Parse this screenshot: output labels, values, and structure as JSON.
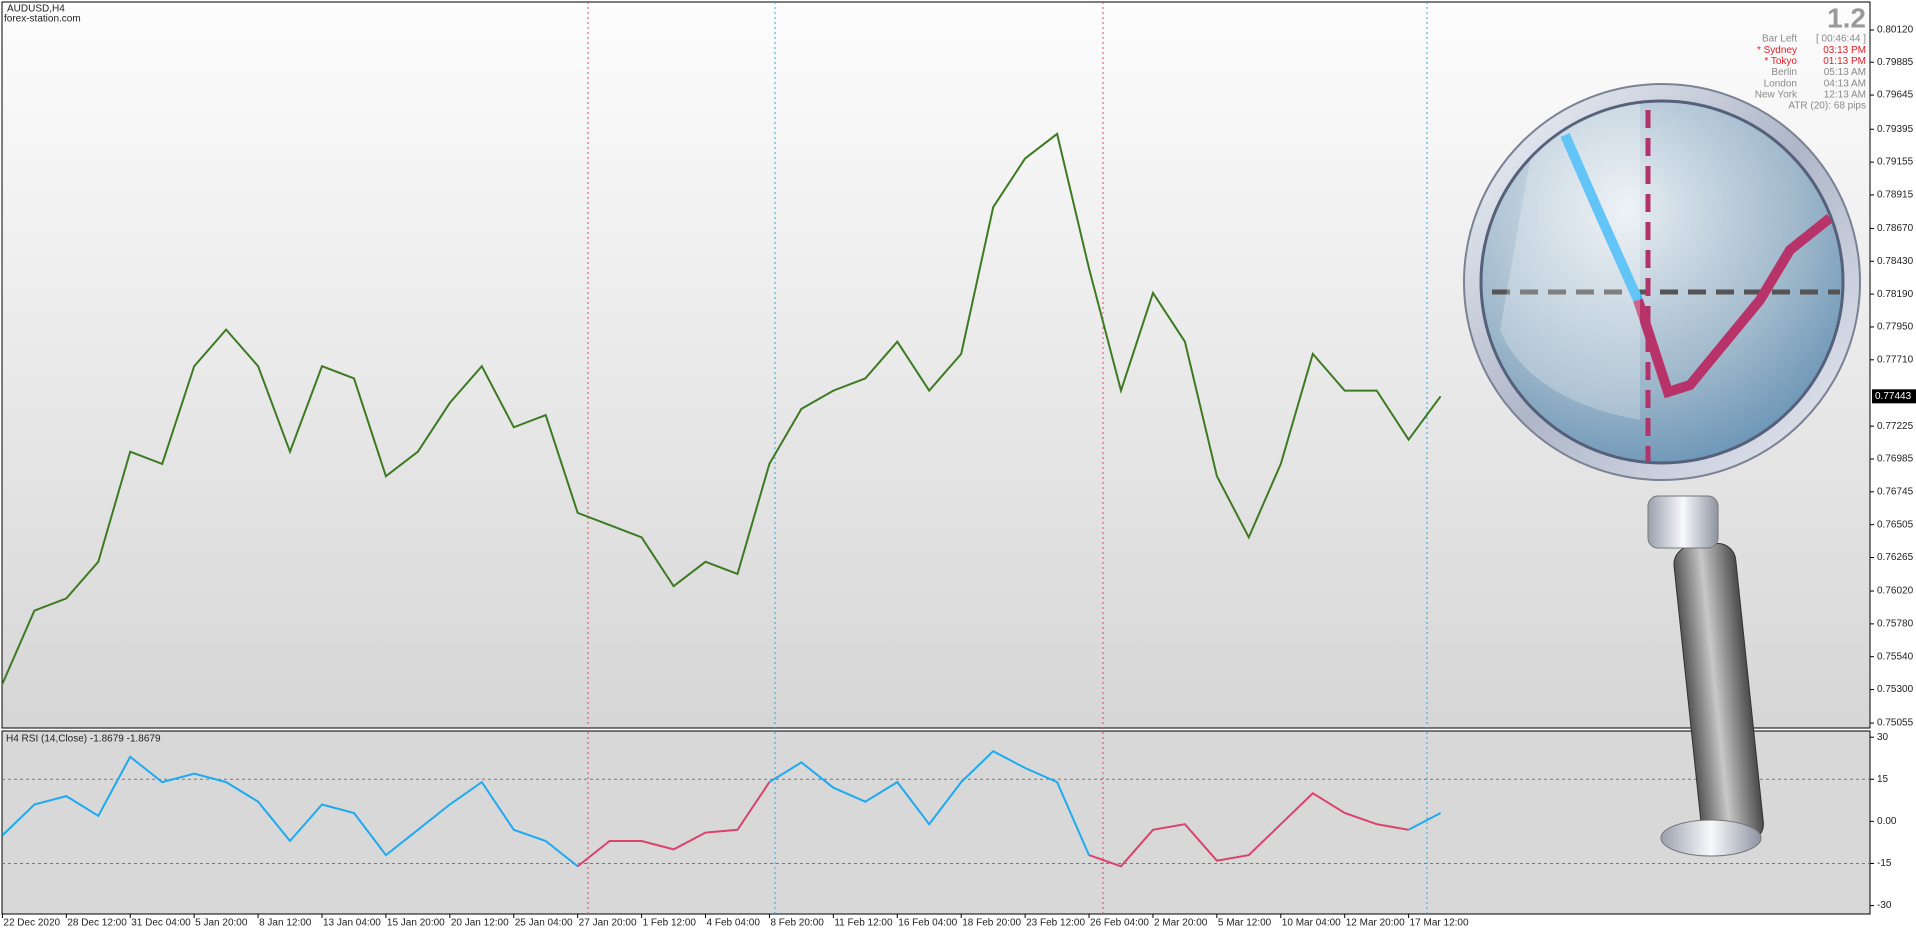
{
  "symbol": "AUDUSD,H4",
  "watermark": "forex-station.com",
  "version": "1.2",
  "info_panel": [
    {
      "label": "Bar Left",
      "value": "[ 00:46:44 ]",
      "color": "#8a8a8a"
    },
    {
      "label": "* Sydney",
      "value": "03:13 PM",
      "color": "#e0202a"
    },
    {
      "label": "* Tokyo",
      "value": "01:13 PM",
      "color": "#e0202a"
    },
    {
      "label": "Berlin",
      "value": "05:13 AM",
      "color": "#8a8a8a"
    },
    {
      "label": "London",
      "value": "04:13 AM",
      "color": "#8a8a8a"
    },
    {
      "label": "New York",
      "value": "12:13 AM",
      "color": "#8a8a8a"
    }
  ],
  "atr": "ATR (20): 68 pips",
  "current_price": {
    "value": 0.77443,
    "label": "0.77443"
  },
  "chart_data": [
    {
      "type": "line",
      "color": "#3d7a22",
      "categories": [
        "22 Dec 2020",
        null,
        "28 Dec 12:00",
        null,
        "31 Dec 04:00",
        null,
        "5 Jan 20:00",
        null,
        "8 Jan 12:00",
        null,
        "13 Jan 04:00",
        null,
        "15 Jan 20:00",
        null,
        "20 Jan 12:00",
        null,
        "25 Jan 04:00",
        null,
        "27 Jan 20:00",
        null,
        "1 Feb 12:00",
        null,
        "4 Feb 04:00",
        null,
        "8 Feb 20:00",
        null,
        "11 Feb 12:00",
        null,
        "16 Feb 04:00",
        null,
        "18 Feb 20:00",
        null,
        "23 Feb 12:00",
        null,
        "26 Feb 04:00",
        null,
        "2 Mar 20:00",
        null,
        "5 Mar 12:00",
        null,
        "10 Mar 04:00",
        null,
        "12 Mar 20:00",
        null,
        "17 Mar 12:00",
        null
      ],
      "values": [
        0.75341,
        0.75877,
        0.75966,
        0.76234,
        0.77038,
        0.76949,
        0.77663,
        0.77931,
        0.77663,
        0.77038,
        0.77663,
        0.77574,
        0.76859,
        0.77038,
        0.77395,
        0.77663,
        0.77217,
        0.77306,
        0.76591,
        0.76502,
        0.76413,
        0.76055,
        0.76234,
        0.76145,
        0.76949,
        0.77351,
        0.77485,
        0.77574,
        0.77842,
        0.77485,
        0.77753,
        0.78825,
        0.79182,
        0.79361,
        0.78378,
        0.77485,
        0.78199,
        0.77842,
        0.76859,
        0.76413,
        0.76949,
        0.77753,
        0.77485,
        0.77485,
        0.77127,
        0.77443
      ],
      "ylim": [
        0.75019,
        0.80325
      ],
      "yticks": [
        {
          "value": 0.8012,
          "label": "0.80120"
        },
        {
          "value": 0.79885,
          "label": "0.79885"
        },
        {
          "value": 0.79645,
          "label": "0.79645"
        },
        {
          "value": 0.79395,
          "label": "0.79395"
        },
        {
          "value": 0.79155,
          "label": "0.79155"
        },
        {
          "value": 0.78915,
          "label": "0.78915"
        },
        {
          "value": 0.7867,
          "label": "0.78670"
        },
        {
          "value": 0.7843,
          "label": "0.78430"
        },
        {
          "value": 0.7819,
          "label": "0.78190"
        },
        {
          "value": 0.7795,
          "label": "0.77950"
        },
        {
          "value": 0.7771,
          "label": "0.77710"
        },
        {
          "value": 0.77225,
          "label": "0.77225"
        },
        {
          "value": 0.76985,
          "label": "0.76985"
        },
        {
          "value": 0.76745,
          "label": "0.76745"
        },
        {
          "value": 0.76505,
          "label": "0.76505"
        },
        {
          "value": 0.76265,
          "label": "0.76265"
        },
        {
          "value": 0.7602,
          "label": "0.76020"
        },
        {
          "value": 0.7578,
          "label": "0.75780"
        },
        {
          "value": 0.7554,
          "label": "0.75540"
        },
        {
          "value": 0.753,
          "label": "0.75300"
        },
        {
          "value": 0.75055,
          "label": "0.75055"
        }
      ]
    },
    {
      "type": "line",
      "title": "H4 RSI (14,Close) -1.8679 -1.8679",
      "series": [
        {
          "color": "#1eaaf1",
          "values": [
            -5,
            6,
            9,
            2,
            23,
            14,
            17,
            14,
            7,
            -7,
            6,
            3,
            -12,
            -3,
            6,
            14,
            -3,
            -7,
            -16,
            null,
            null,
            null,
            null,
            null,
            14,
            21,
            12,
            7,
            14,
            -1,
            14,
            25,
            19,
            14,
            -12,
            null,
            null,
            null,
            null,
            null,
            null,
            null,
            null,
            null,
            -3,
            3
          ]
        },
        {
          "color": "#d9436e",
          "values": [
            null,
            null,
            null,
            null,
            null,
            null,
            null,
            null,
            null,
            null,
            null,
            null,
            null,
            null,
            null,
            null,
            null,
            null,
            -16,
            -7,
            -7,
            -10,
            -4,
            -3,
            14,
            null,
            null,
            null,
            null,
            null,
            null,
            null,
            null,
            null,
            -12,
            -16,
            -3,
            -1,
            -14,
            -12,
            -1,
            10,
            3,
            -1,
            -3,
            null
          ]
        }
      ],
      "ylim": [
        -33,
        32.2
      ],
      "yticks": [
        30,
        15,
        {
          "value": 0,
          "label": "0.00"
        },
        -15,
        -30
      ],
      "levels": [
        15,
        -15
      ]
    }
  ]
}
